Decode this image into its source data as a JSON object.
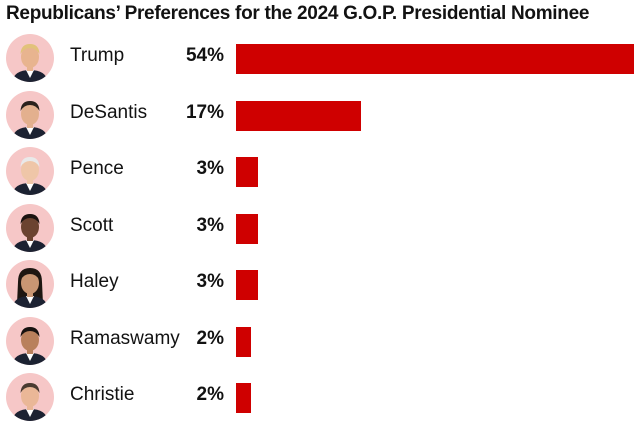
{
  "title": "Republicans’ Preferences for the 2024 G.O.P. Presidential Nominee",
  "colors": {
    "bar": "#cf0000",
    "avatar_bg": "#f6c7c7",
    "text": "#121212"
  },
  "candidates": [
    {
      "name": "Trump",
      "value_label": "54%",
      "photo": "trump-portrait"
    },
    {
      "name": "DeSantis",
      "value_label": "17%",
      "photo": "desantis-portrait"
    },
    {
      "name": "Pence",
      "value_label": "3%",
      "photo": "pence-portrait"
    },
    {
      "name": "Scott",
      "value_label": "3%",
      "photo": "scott-portrait"
    },
    {
      "name": "Haley",
      "value_label": "3%",
      "photo": "haley-portrait"
    },
    {
      "name": "Ramaswamy",
      "value_label": "2%",
      "photo": "ramaswamy-portrait"
    },
    {
      "name": "Christie",
      "value_label": "2%",
      "photo": "christie-portrait"
    }
  ],
  "chart_data": {
    "type": "bar",
    "orientation": "horizontal",
    "title": "Republicans’ Preferences for the 2024 G.O.P. Presidential Nominee",
    "xlabel": "",
    "ylabel": "",
    "categories": [
      "Trump",
      "DeSantis",
      "Pence",
      "Scott",
      "Haley",
      "Ramaswamy",
      "Christie"
    ],
    "values": [
      54,
      17,
      3,
      3,
      3,
      2,
      2
    ],
    "data_labels": [
      "54%",
      "17%",
      "3%",
      "3%",
      "3%",
      "2%",
      "2%"
    ],
    "xlim": [
      0,
      54
    ],
    "grid": false,
    "legend": "none"
  }
}
